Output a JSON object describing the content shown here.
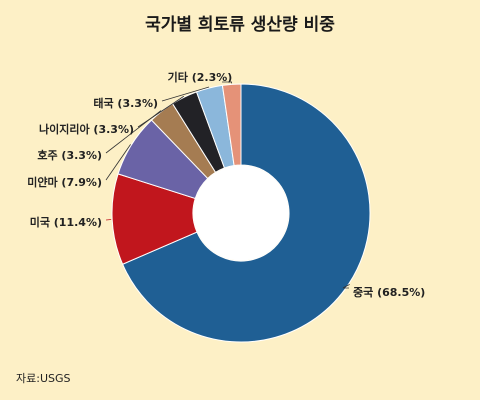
{
  "chart_data": {
    "type": "pie",
    "title": "국가별 희토류 생산량 비중",
    "unit": "%",
    "categories": [
      "중국",
      "미국",
      "미얀마",
      "호주",
      "나이지리아",
      "태국",
      "기타"
    ],
    "values": [
      68.5,
      11.4,
      7.9,
      3.3,
      3.3,
      3.3,
      2.3
    ],
    "labels": [
      "중국 (68.5%)",
      "미국 (11.4%)",
      "미얀마 (7.9%)",
      "호주 (3.3%)",
      "나이지리아 (3.3%)",
      "태국 (3.3%)",
      "기타 (2.3%)"
    ],
    "colors": [
      "#1f5f94",
      "#c1161d",
      "#6a63a6",
      "#a57c52",
      "#222226",
      "#8bb7db",
      "#e59278"
    ],
    "donut": true
  },
  "source": "자료:USGS"
}
